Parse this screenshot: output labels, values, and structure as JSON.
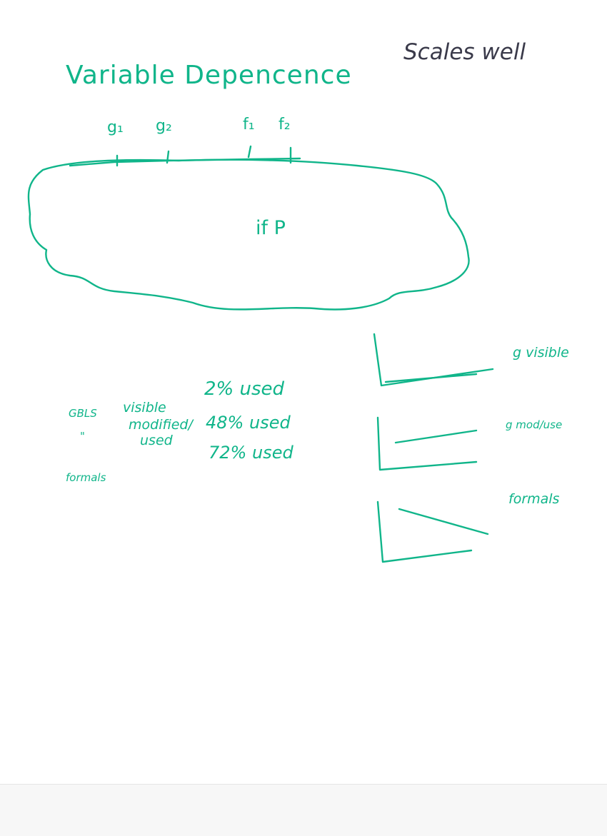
{
  "page": {
    "title": "Variable Depencence",
    "note": "Scales well",
    "params": [
      "g₁",
      "g₂",
      "f₁",
      "f₂"
    ],
    "condition": "if P"
  },
  "stats": {
    "row_labels": [
      "GBLS",
      "\"",
      "formals"
    ],
    "col_labels": [
      "visible",
      "modified/",
      "used"
    ],
    "values": [
      "2% used",
      "48% used",
      "72% used"
    ]
  },
  "graphs": [
    {
      "label": "g visible"
    },
    {
      "label": "g mod/use"
    },
    {
      "label": "formals"
    }
  ],
  "colors": {
    "ink": "#10b58a",
    "note_ink": "#3a3a4a",
    "paper": "#ffffff"
  }
}
